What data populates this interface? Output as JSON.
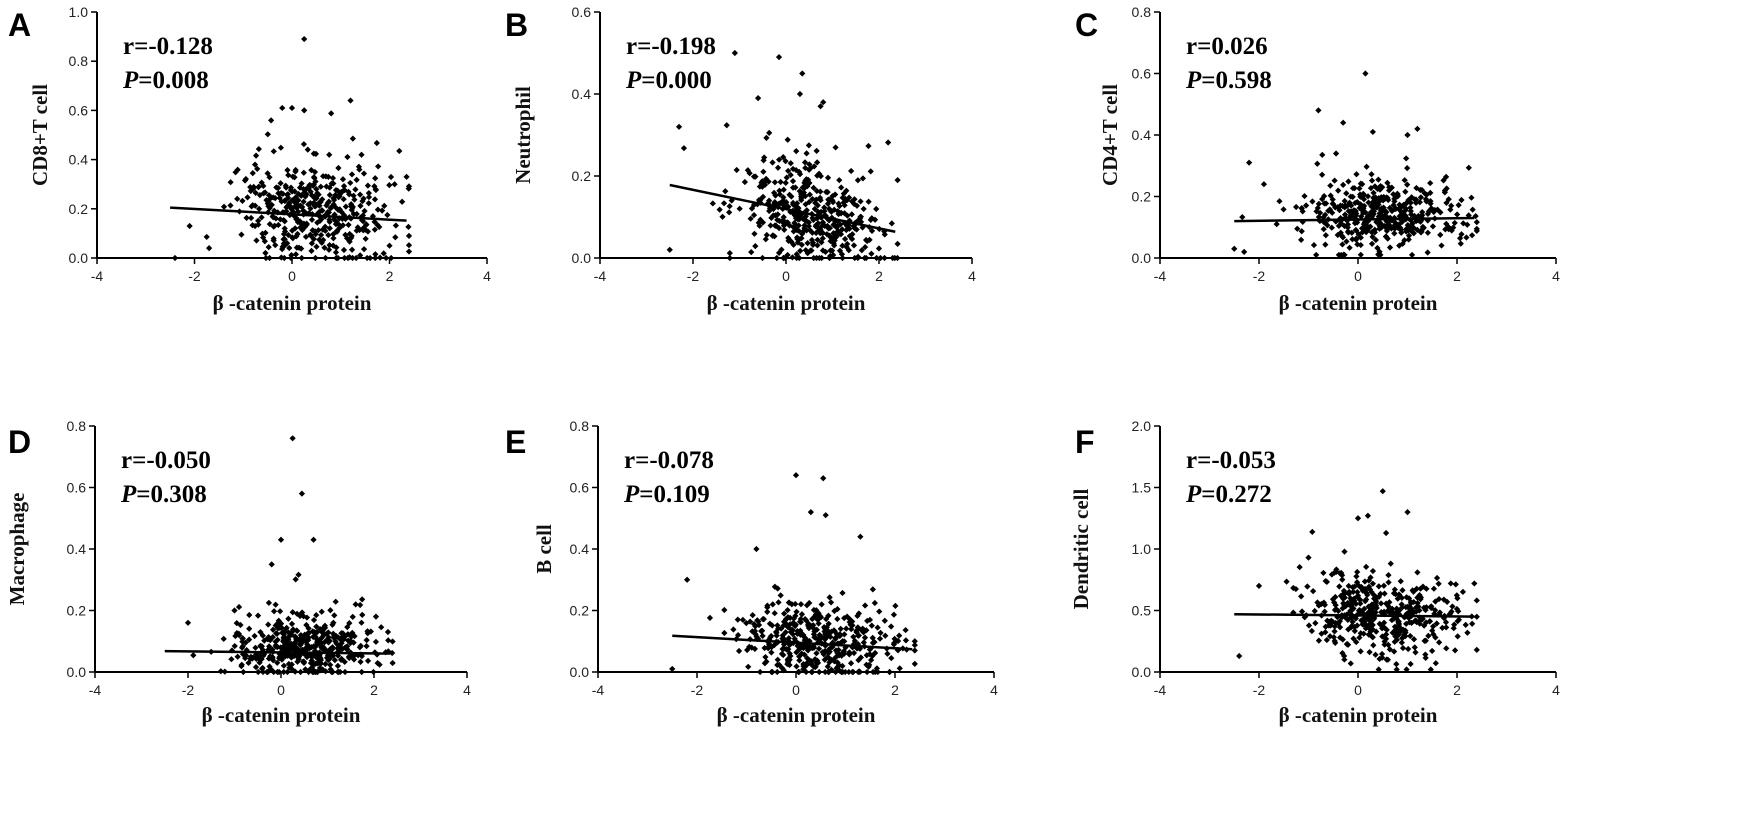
{
  "chart_data": [
    {
      "type": "scatter",
      "panel": "A",
      "ylabel": "CD8+T cell",
      "xlabel": "β -catenin protein",
      "xlim": [
        -4,
        4
      ],
      "ylim": [
        0.0,
        1.0
      ],
      "xticks": [
        "-4",
        "-2",
        "0",
        "2",
        "4"
      ],
      "yticks": [
        "0.0",
        "0.2",
        "0.4",
        "0.6",
        "0.8",
        "1.0"
      ],
      "r_text": "r=-0.128",
      "p_prefix": "P",
      "p_value": "=0.008",
      "fit_line": {
        "x": [
          -2.5,
          2.35
        ],
        "y": [
          0.205,
          0.152
        ]
      },
      "outliers": [
        [
          0.25,
          0.89
        ],
        [
          -0.2,
          0.61
        ],
        [
          0.0,
          0.61
        ],
        [
          0.25,
          0.6
        ],
        [
          1.2,
          0.64
        ],
        [
          -2.1,
          0.13
        ],
        [
          -1.7,
          0.04
        ],
        [
          -2.4,
          0.0
        ],
        [
          2.35,
          0.33
        ],
        [
          2.0,
          0.05
        ]
      ],
      "cloud": {
        "n": 430,
        "x_mean": 0.45,
        "x_sd": 0.8,
        "y_base": 0.18,
        "y_spread": 0.15,
        "y_min": 0.0
      }
    },
    {
      "type": "scatter",
      "panel": "B",
      "ylabel": "Neutrophil",
      "xlabel": "β -catenin protein",
      "xlim": [
        -4,
        4
      ],
      "ylim": [
        0.0,
        0.6
      ],
      "xticks": [
        "-4",
        "-2",
        "0",
        "2",
        "4"
      ],
      "yticks": [
        "0.0",
        "0.2",
        "0.4",
        "0.6"
      ],
      "r_text": "r=-0.198",
      "p_prefix": "P",
      "p_value": "=0.000",
      "fit_line": {
        "x": [
          -2.5,
          2.35
        ],
        "y": [
          0.178,
          0.064
        ]
      },
      "outliers": [
        [
          -1.1,
          0.5
        ],
        [
          -0.15,
          0.49
        ],
        [
          -0.6,
          0.39
        ],
        [
          0.35,
          0.45
        ],
        [
          0.3,
          0.4
        ],
        [
          -2.3,
          0.32
        ],
        [
          -2.5,
          0.02
        ],
        [
          2.4,
          0.19
        ],
        [
          0.8,
          0.38
        ]
      ],
      "cloud": {
        "n": 430,
        "x_mean": 0.45,
        "x_sd": 0.8,
        "y_base": 0.1,
        "y_spread": 0.085,
        "y_min": 0.0
      }
    },
    {
      "type": "scatter",
      "panel": "C",
      "ylabel": "CD4+T cell",
      "xlabel": "β -catenin protein",
      "xlim": [
        -4,
        4
      ],
      "ylim": [
        0.0,
        0.8
      ],
      "xticks": [
        "-4",
        "-2",
        "0",
        "2",
        "4"
      ],
      "yticks": [
        "0.0",
        "0.2",
        "0.4",
        "0.6",
        "0.8"
      ],
      "r_text": "r=0.026",
      "p_prefix": "P",
      "p_value": "=0.598",
      "fit_line": {
        "x": [
          -2.5,
          2.35
        ],
        "y": [
          0.12,
          0.13
        ]
      },
      "outliers": [
        [
          0.15,
          0.6
        ],
        [
          -0.8,
          0.48
        ],
        [
          -0.3,
          0.44
        ],
        [
          0.3,
          0.41
        ],
        [
          1.2,
          0.42
        ],
        [
          -2.2,
          0.31
        ],
        [
          -1.9,
          0.24
        ],
        [
          -2.5,
          0.03
        ],
        [
          -2.3,
          0.02
        ],
        [
          1.0,
          0.4
        ]
      ],
      "cloud": {
        "n": 430,
        "x_mean": 0.45,
        "x_sd": 0.8,
        "y_base": 0.13,
        "y_spread": 0.075,
        "y_min": 0.01
      }
    },
    {
      "type": "scatter",
      "panel": "D",
      "ylabel": "Macrophage",
      "xlabel": "β -catenin protein",
      "xlim": [
        -4,
        4
      ],
      "ylim": [
        0.0,
        0.8
      ],
      "xticks": [
        "-4",
        "-2",
        "0",
        "2",
        "4"
      ],
      "yticks": [
        "0.0",
        "0.2",
        "0.4",
        "0.6",
        "0.8"
      ],
      "r_text": "r=-0.050",
      "p_prefix": "P",
      "p_value": "=0.308",
      "fit_line": {
        "x": [
          -2.5,
          2.35
        ],
        "y": [
          0.068,
          0.06
        ]
      },
      "outliers": [
        [
          0.25,
          0.76
        ],
        [
          0.45,
          0.58
        ],
        [
          0.0,
          0.43
        ],
        [
          0.7,
          0.43
        ],
        [
          -0.2,
          0.35
        ],
        [
          -1.0,
          0.2
        ],
        [
          -2.0,
          0.16
        ],
        [
          2.3,
          0.13
        ]
      ],
      "cloud": {
        "n": 430,
        "x_mean": 0.45,
        "x_sd": 0.8,
        "y_base": 0.075,
        "y_spread": 0.07,
        "y_min": 0.0
      }
    },
    {
      "type": "scatter",
      "panel": "E",
      "ylabel": "B cell",
      "xlabel": "β -catenin protein",
      "xlim": [
        -4,
        4
      ],
      "ylim": [
        0.0,
        0.8
      ],
      "xticks": [
        "-4",
        "-2",
        "0",
        "2",
        "4"
      ],
      "yticks": [
        "0.0",
        "0.2",
        "0.4",
        "0.6",
        "0.8"
      ],
      "r_text": "r=-0.078",
      "p_prefix": "P",
      "p_value": "=0.109",
      "fit_line": {
        "x": [
          -2.5,
          2.35
        ],
        "y": [
          0.118,
          0.074
        ]
      },
      "outliers": [
        [
          0.0,
          0.64
        ],
        [
          0.55,
          0.63
        ],
        [
          0.3,
          0.52
        ],
        [
          0.6,
          0.51
        ],
        [
          -0.8,
          0.4
        ],
        [
          1.3,
          0.44
        ],
        [
          -2.2,
          0.3
        ],
        [
          -2.5,
          0.01
        ],
        [
          2.4,
          0.1
        ]
      ],
      "cloud": {
        "n": 430,
        "x_mean": 0.45,
        "x_sd": 0.8,
        "y_base": 0.09,
        "y_spread": 0.08,
        "y_min": 0.0
      }
    },
    {
      "type": "scatter",
      "panel": "F",
      "ylabel": "Dendritic cell",
      "xlabel": "β -catenin protein",
      "xlim": [
        -4,
        4
      ],
      "ylim": [
        0.0,
        2.0
      ],
      "xticks": [
        "-4",
        "-2",
        "0",
        "2",
        "4"
      ],
      "yticks": [
        "0.0",
        "0.5",
        "1.0",
        "1.5",
        "2.0"
      ],
      "r_text": "r=-0.053",
      "p_prefix": "P",
      "p_value": "=0.272",
      "fit_line": {
        "x": [
          -2.5,
          2.35
        ],
        "y": [
          0.47,
          0.45
        ]
      },
      "outliers": [
        [
          0.5,
          1.47
        ],
        [
          0.2,
          1.27
        ],
        [
          1.0,
          1.3
        ],
        [
          0.0,
          1.25
        ],
        [
          -1.0,
          0.93
        ],
        [
          -2.4,
          0.13
        ],
        [
          -2.0,
          0.7
        ],
        [
          2.35,
          0.72
        ],
        [
          2.4,
          0.18
        ]
      ],
      "cloud": {
        "n": 430,
        "x_mean": 0.45,
        "x_sd": 0.8,
        "y_base": 0.45,
        "y_spread": 0.22,
        "y_min": 0.02
      }
    }
  ]
}
